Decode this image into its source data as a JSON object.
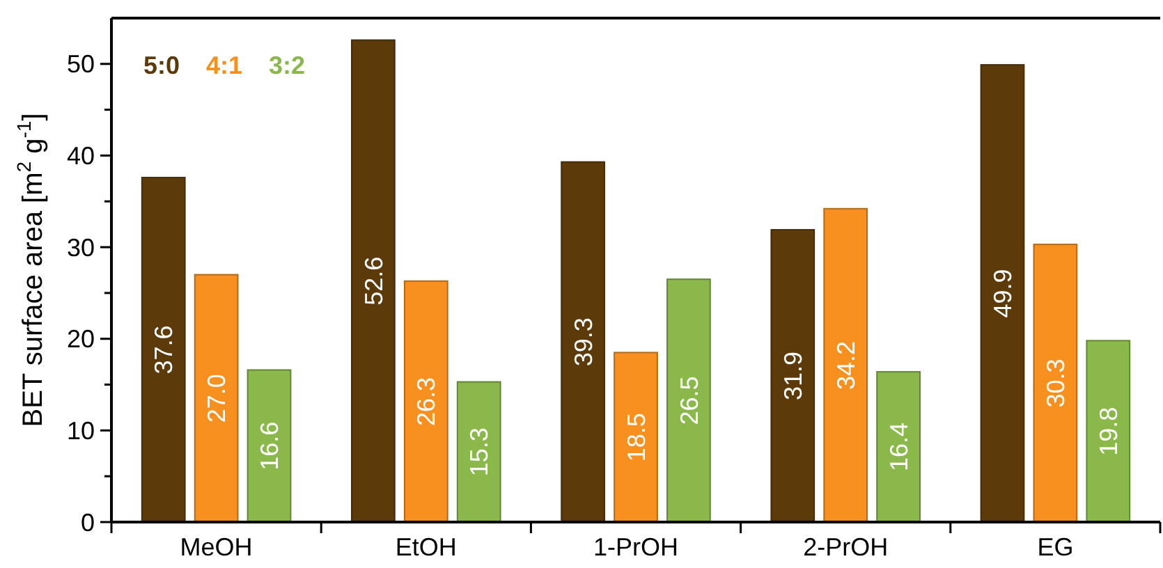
{
  "chart_data": {
    "type": "bar",
    "ylabel": "BET surface area [m$^{2}$ g$^{-1}$]",
    "categories": [
      "MeOH",
      "EtOH",
      "1-PrOH",
      "2-PrOH",
      "EG"
    ],
    "series": [
      {
        "name": "5:0",
        "color": "#5c3a0a",
        "values": [
          37.6,
          52.6,
          39.3,
          31.9,
          49.9
        ],
        "value_labels": [
          "37.6",
          "52.6",
          "39.3",
          "31.9",
          "49.9"
        ]
      },
      {
        "name": "4:1",
        "color": "#f7901e",
        "values": [
          27.0,
          26.3,
          18.5,
          34.2,
          30.3
        ],
        "value_labels": [
          "27.0",
          "26.3",
          "18.5",
          "34.2",
          "30.3"
        ]
      },
      {
        "name": "3:2",
        "color": "#8ab84a",
        "values": [
          16.6,
          15.3,
          26.5,
          16.4,
          19.8
        ],
        "value_labels": [
          "16.6",
          "15.3",
          "26.5",
          "16.4",
          "19.8"
        ]
      }
    ],
    "ylim": [
      0,
      55
    ],
    "yticks": [
      0,
      {
        "value": 5,
        "label": null
      },
      10,
      {
        "value": 15,
        "label": null
      },
      20,
      {
        "value": 25,
        "label": null
      },
      30,
      {
        "value": 35,
        "label": null
      },
      40,
      {
        "value": 45,
        "label": null
      },
      50
    ],
    "legend": "top left",
    "grid": false
  }
}
